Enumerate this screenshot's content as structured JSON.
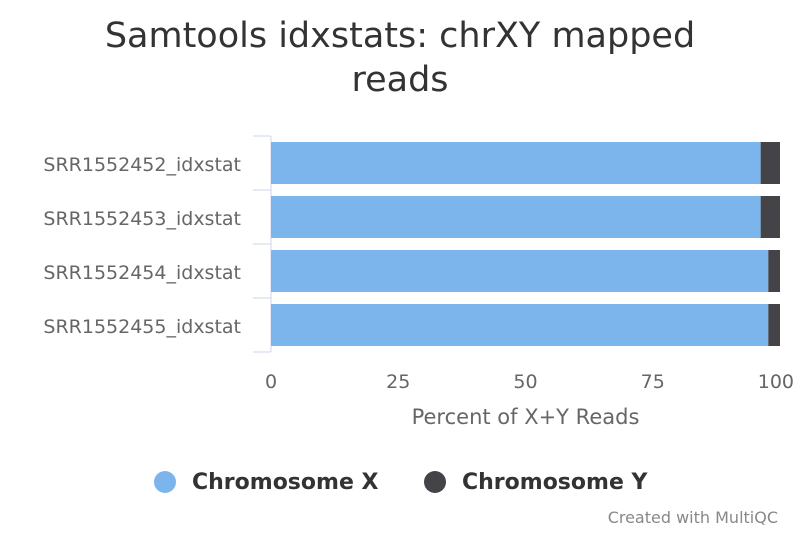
{
  "chart_data": {
    "type": "bar",
    "orientation": "horizontal",
    "stacked": true,
    "title": "Samtools idxstats: chrXY mapped reads",
    "categories": [
      "SRR1552452_idxstat",
      "SRR1552453_idxstat",
      "SRR1552454_idxstat",
      "SRR1552455_idxstat"
    ],
    "series": [
      {
        "name": "Chromosome X",
        "color": "#7cb5ec",
        "values": [
          96.2,
          96.2,
          97.7,
          97.7
        ]
      },
      {
        "name": "Chromosome Y",
        "color": "#434348",
        "values": [
          3.8,
          3.8,
          2.3,
          2.3
        ]
      }
    ],
    "xlabel": "Percent of X+Y Reads",
    "ylabel": "",
    "xlim": [
      0,
      100
    ],
    "xticks": [
      0,
      25,
      50,
      75,
      100
    ],
    "grid": false,
    "legend_position": "bottom"
  },
  "title_lines": [
    "Samtools idxstats: chrXY mapped",
    "reads"
  ],
  "credit": "Created with MultiQC"
}
